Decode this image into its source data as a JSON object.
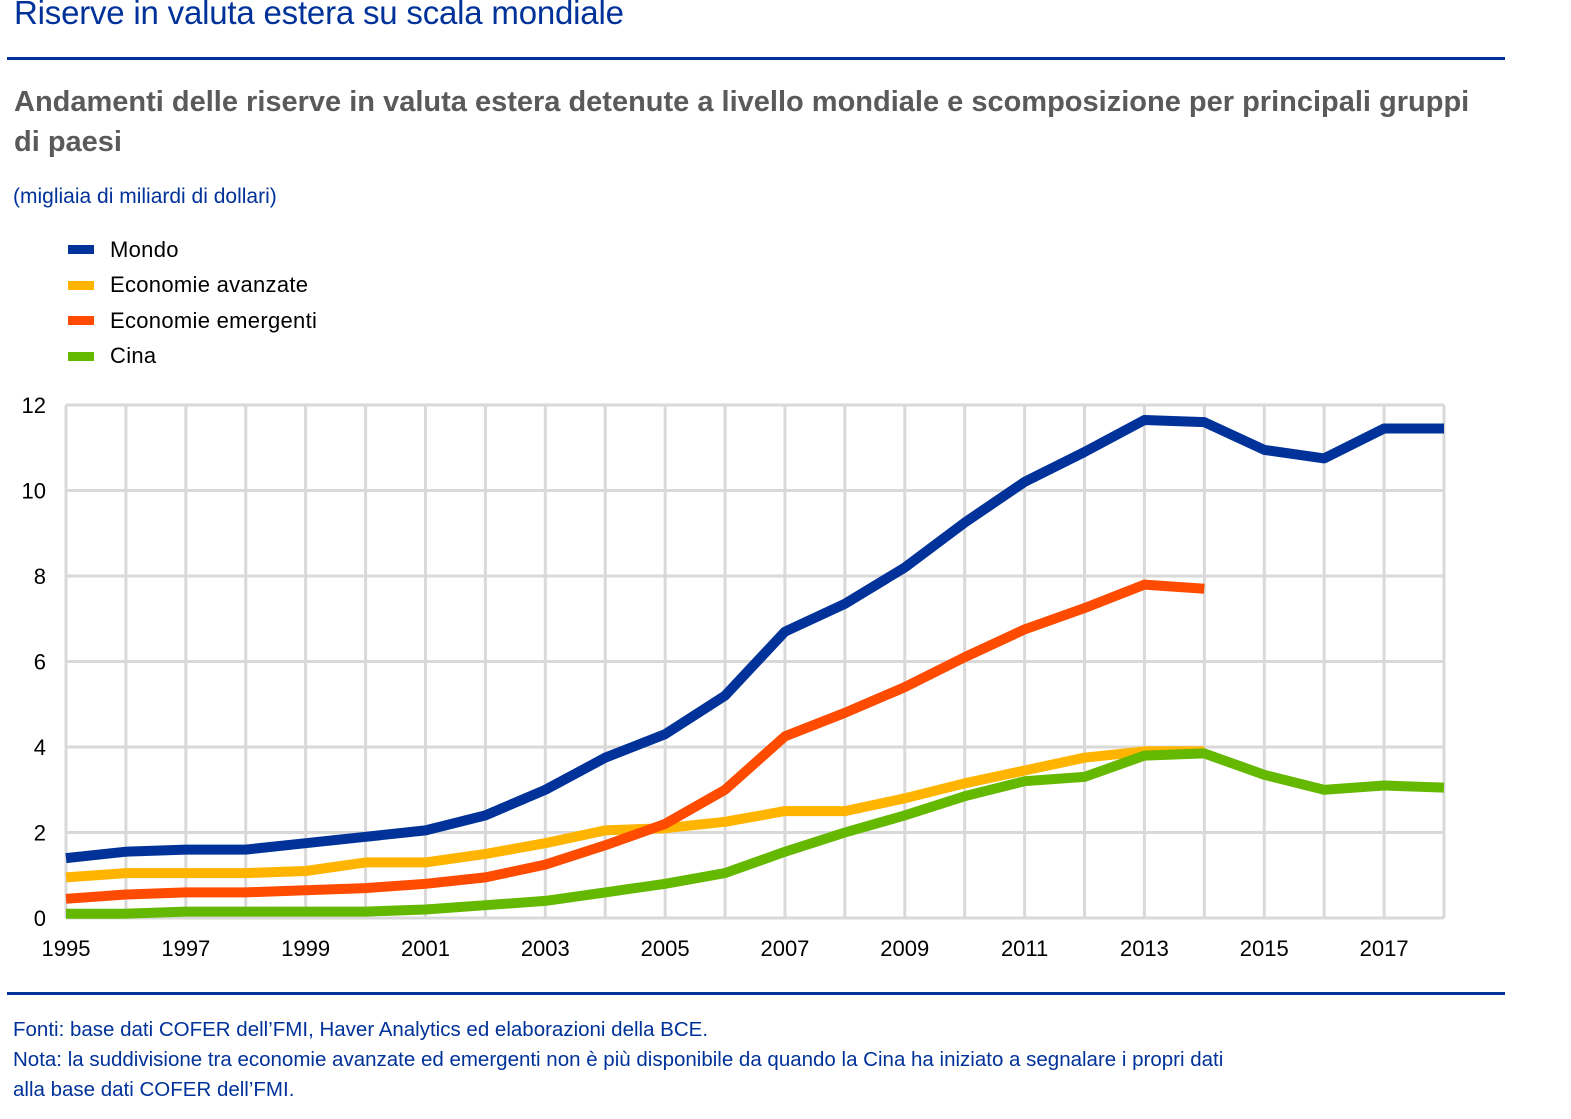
{
  "header": {
    "title": "Riserve in valuta estera su scala mondiale",
    "subtitle": "Andamenti delle riserve in valuta estera detenute a livello mondiale e scomposizione per principali gruppi di paesi",
    "unit": "(migliaia di miliardi di dollari)"
  },
  "legend": [
    {
      "label": "Mondo",
      "color": "#003299"
    },
    {
      "label": "Economie avanzate",
      "color": "#FFB400"
    },
    {
      "label": "Economie emergenti",
      "color": "#FF4B00"
    },
    {
      "label": "Cina",
      "color": "#65B800"
    }
  ],
  "footer": {
    "sources": "Fonti: base dati COFER dell’FMI, Haver Analytics ed elaborazioni della BCE.",
    "note_line1": "Nota: la suddivisione tra economie avanzate ed emergenti non è più disponibile da quando la Cina ha iniziato a segnalare i propri dati",
    "note_line2": "alla base dati COFER dell’FMI."
  },
  "chart_data": {
    "type": "line",
    "title": "Andamenti delle riserve in valuta estera detenute a livello mondiale e scomposizione per principali gruppi di paesi",
    "xlabel": "",
    "ylabel": "migliaia di miliardi di dollari",
    "x": [
      1995,
      1996,
      1997,
      1998,
      1999,
      2000,
      2001,
      2002,
      2003,
      2004,
      2005,
      2006,
      2007,
      2008,
      2009,
      2010,
      2011,
      2012,
      2013,
      2014,
      2015,
      2016,
      2017,
      2018
    ],
    "xlim": [
      1995,
      2018
    ],
    "ylim": [
      0,
      12
    ],
    "yticks": [
      0,
      2,
      4,
      6,
      8,
      10,
      12
    ],
    "xtick_labels": [
      "1995",
      "1997",
      "1999",
      "2001",
      "2003",
      "2005",
      "2007",
      "2009",
      "2011",
      "2013",
      "2015",
      "2017"
    ],
    "grid": true,
    "legend_position": "top-left",
    "series": [
      {
        "name": "Mondo",
        "color": "#003299",
        "values": [
          1.4,
          1.55,
          1.6,
          1.6,
          1.75,
          1.9,
          2.05,
          2.4,
          3.0,
          3.75,
          4.3,
          5.2,
          6.7,
          7.35,
          8.2,
          9.25,
          10.2,
          10.9,
          11.65,
          11.6,
          10.95,
          10.75,
          11.45,
          11.45
        ]
      },
      {
        "name": "Economie avanzate",
        "color": "#FFB400",
        "values": [
          0.95,
          1.05,
          1.05,
          1.05,
          1.1,
          1.3,
          1.3,
          1.5,
          1.75,
          2.05,
          2.1,
          2.25,
          2.5,
          2.5,
          2.8,
          3.15,
          3.45,
          3.75,
          3.9,
          3.9,
          null,
          null,
          null,
          null
        ]
      },
      {
        "name": "Economie emergenti",
        "color": "#FF4B00",
        "values": [
          0.45,
          0.55,
          0.6,
          0.6,
          0.65,
          0.7,
          0.8,
          0.95,
          1.25,
          1.7,
          2.2,
          3.0,
          4.25,
          4.8,
          5.4,
          6.1,
          6.75,
          7.25,
          7.8,
          7.7,
          null,
          null,
          null,
          null
        ]
      },
      {
        "name": "Cina",
        "color": "#65B800",
        "values": [
          0.1,
          0.1,
          0.15,
          0.15,
          0.15,
          0.15,
          0.2,
          0.3,
          0.4,
          0.6,
          0.8,
          1.05,
          1.55,
          2.0,
          2.4,
          2.85,
          3.2,
          3.3,
          3.8,
          3.85,
          3.35,
          3.0,
          3.1,
          3.05
        ]
      }
    ]
  }
}
